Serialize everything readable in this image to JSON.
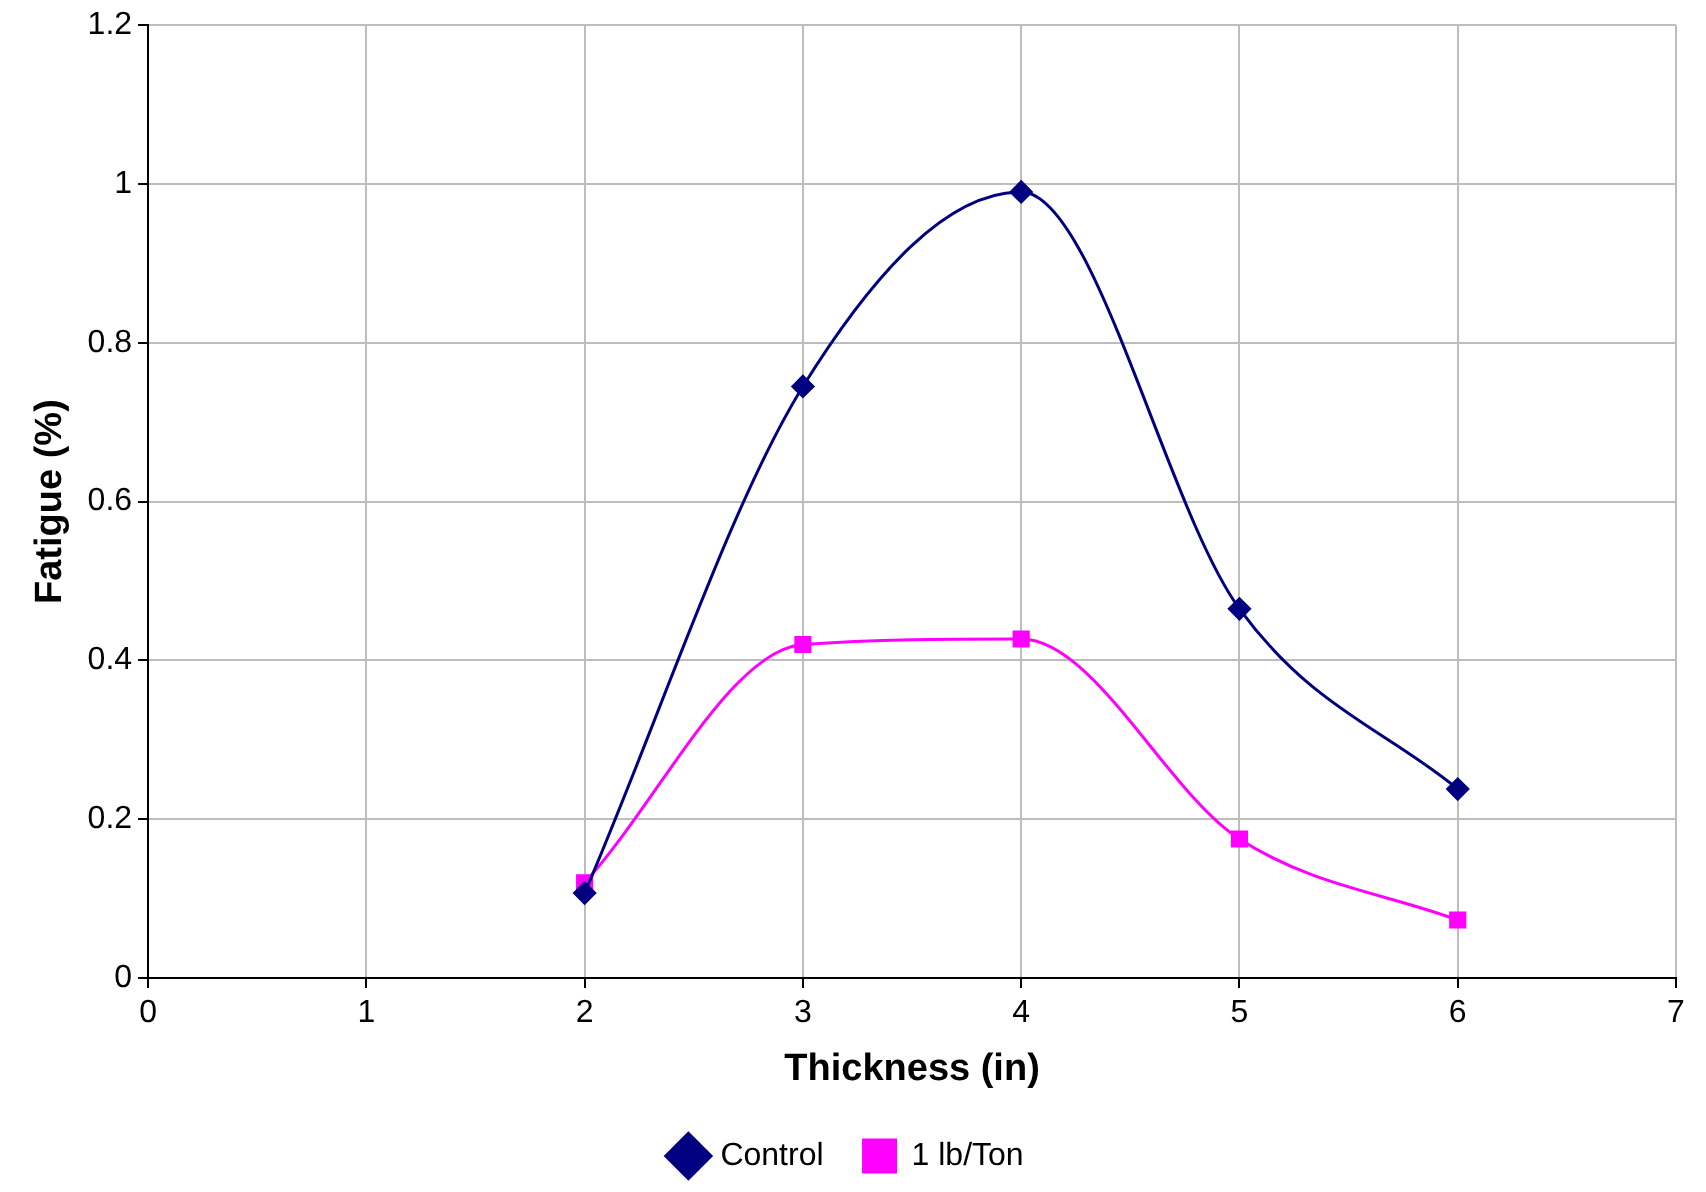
{
  "chart_data": {
    "type": "line",
    "xlabel": "Thickness (in)",
    "ylabel": "Fatigue (%)",
    "x": [
      2,
      3,
      4,
      5,
      6
    ],
    "series": [
      {
        "name": "Control",
        "color": "#000080",
        "marker": "diamond",
        "values": [
          0.107,
          0.745,
          0.99,
          0.465,
          0.238
        ]
      },
      {
        "name": "1 lb/Ton",
        "color": "#ff00ff",
        "marker": "square",
        "values": [
          0.12,
          0.42,
          0.427,
          0.175,
          0.073
        ]
      }
    ],
    "xlim": [
      0,
      7
    ],
    "xticks": [
      0,
      1,
      2,
      3,
      4,
      5,
      6,
      7
    ],
    "ylim": [
      0,
      1.2
    ],
    "yticks": [
      0,
      0.2,
      0.4,
      0.6,
      0.8,
      1,
      1.2
    ],
    "grid": true,
    "legend": "bottom",
    "line_style": "solid"
  }
}
